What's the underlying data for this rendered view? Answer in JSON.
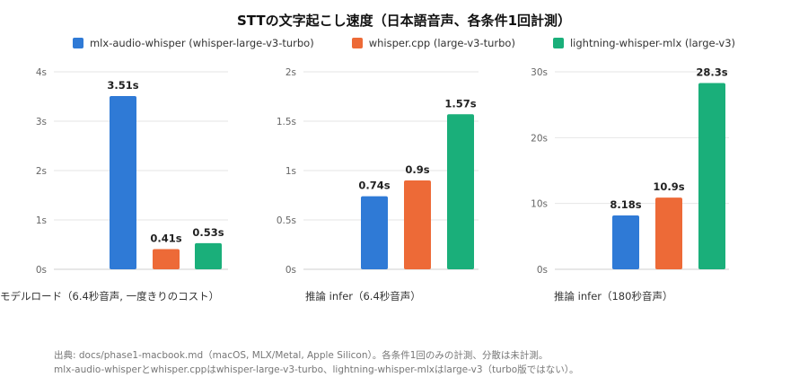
{
  "header": {
    "title": "STTの文字起こし速度（日本語音声、各条件1回計測）"
  },
  "legend": [
    {
      "label": "mlx-audio-whisper (whisper-large-v3-turbo)",
      "color": "#2f7ad6"
    },
    {
      "label": "whisper.cpp (large-v3-turbo)",
      "color": "#ed6a37"
    },
    {
      "label": "lightning-whisper-mlx (large-v3)",
      "color": "#1aaf7a"
    }
  ],
  "chart_data": [
    {
      "type": "bar",
      "xlabel": "モデルロード（6.4秒音声, 一度きりのコスト）",
      "ylim": [
        0,
        4
      ],
      "yticks": [
        "0s",
        "1s",
        "2s",
        "3s",
        "4s"
      ],
      "series": [
        {
          "name": "mlx-audio-whisper (whisper-large-v3-turbo)",
          "value": 3.51,
          "label": "3.51s"
        },
        {
          "name": "whisper.cpp (large-v3-turbo)",
          "value": 0.41,
          "label": "0.41s"
        },
        {
          "name": "lightning-whisper-mlx (large-v3)",
          "value": 0.53,
          "label": "0.53s"
        }
      ]
    },
    {
      "type": "bar",
      "xlabel": "推論 infer（6.4秒音声）",
      "ylim": [
        0,
        2
      ],
      "yticks": [
        "0s",
        "0.5s",
        "1s",
        "1.5s",
        "2s"
      ],
      "series": [
        {
          "name": "mlx-audio-whisper (whisper-large-v3-turbo)",
          "value": 0.74,
          "label": "0.74s"
        },
        {
          "name": "whisper.cpp (large-v3-turbo)",
          "value": 0.9,
          "label": "0.9s"
        },
        {
          "name": "lightning-whisper-mlx (large-v3)",
          "value": 1.57,
          "label": "1.57s"
        }
      ]
    },
    {
      "type": "bar",
      "xlabel": "推論 infer（180秒音声）",
      "ylim": [
        0,
        30
      ],
      "yticks": [
        "0s",
        "10s",
        "20s",
        "30s"
      ],
      "series": [
        {
          "name": "mlx-audio-whisper (whisper-large-v3-turbo)",
          "value": 8.18,
          "label": "8.18s"
        },
        {
          "name": "whisper.cpp (large-v3-turbo)",
          "value": 10.9,
          "label": "10.9s"
        },
        {
          "name": "lightning-whisper-mlx (large-v3)",
          "value": 28.3,
          "label": "28.3s"
        }
      ]
    }
  ],
  "footnote": {
    "line1": "出典: docs/phase1-macbook.md（macOS, MLX/Metal, Apple Silicon）。各条件1回のみの計測、分散は未計測。",
    "line2": "mlx-audio-whisperとwhisper.cppはwhisper-large-v3-turbo、lightning-whisper-mlxはlarge-v3（turbo版ではない）。"
  }
}
